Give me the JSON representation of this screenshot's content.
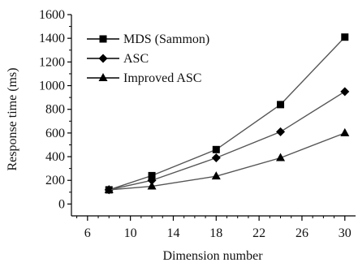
{
  "chart_data": {
    "type": "line",
    "title": "",
    "xlabel": "Dimension number",
    "ylabel": "Response time (ms)",
    "xlim": [
      4.5,
      31
    ],
    "ylim": [
      -100,
      1600
    ],
    "xticks": [
      6,
      10,
      14,
      18,
      22,
      26,
      30
    ],
    "yticks": [
      0,
      200,
      400,
      600,
      800,
      1000,
      1200,
      1400,
      1600
    ],
    "grid": false,
    "legend_position": "top-left",
    "x": [
      8,
      12,
      18,
      24,
      30
    ],
    "series": [
      {
        "name": "MDS (Sammon)",
        "marker": "square",
        "values": [
          120,
          240,
          460,
          840,
          1410
        ]
      },
      {
        "name": "ASC",
        "marker": "diamond",
        "values": [
          120,
          200,
          390,
          610,
          950
        ]
      },
      {
        "name": "Improved ASC",
        "marker": "triangle",
        "values": [
          120,
          150,
          235,
          390,
          600
        ]
      }
    ],
    "colors": {
      "line": "#555555",
      "marker": "#000000",
      "axis": "#000000"
    }
  }
}
